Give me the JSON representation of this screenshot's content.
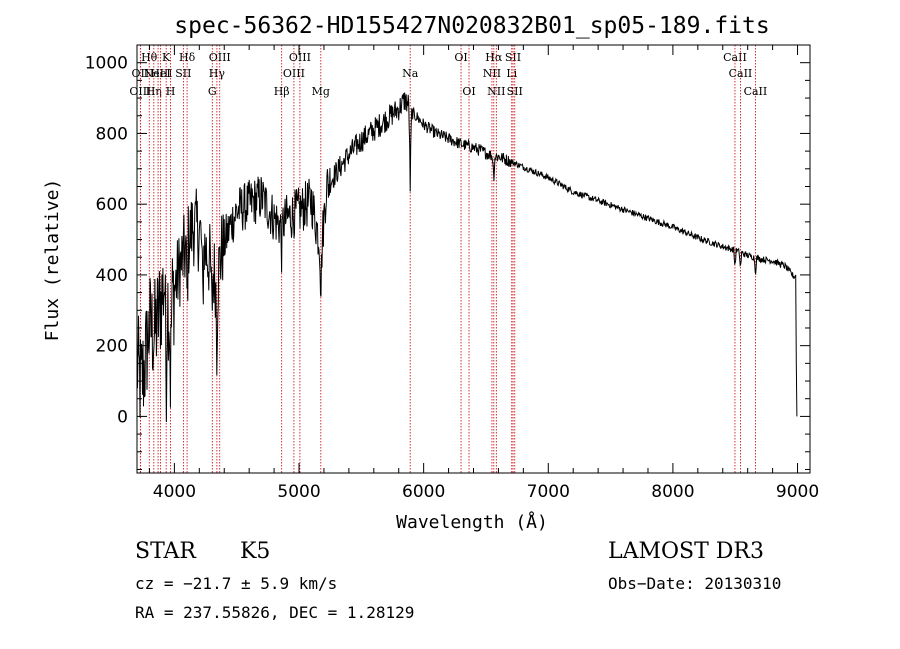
{
  "chart_data": {
    "type": "line",
    "title": "spec-56362-HD155427N020832B01_sp05-189.fits",
    "xlabel": "Wavelength (Å)",
    "ylabel": "Flux (relative)",
    "xlim": [
      3700,
      9100
    ],
    "ylim": [
      -160,
      1050
    ],
    "x_ticks": [
      4000,
      5000,
      6000,
      7000,
      8000,
      9000
    ],
    "y_ticks": [
      0,
      200,
      400,
      600,
      800,
      1000
    ],
    "grid": false,
    "series": [
      {
        "name": "flux",
        "anchors": [
          [
            3700,
            150
          ],
          [
            3730,
            90
          ],
          [
            3760,
            140
          ],
          [
            3800,
            260
          ],
          [
            3840,
            230
          ],
          [
            3880,
            300
          ],
          [
            3920,
            380
          ],
          [
            3960,
            300
          ],
          [
            4000,
            360
          ],
          [
            4050,
            430
          ],
          [
            4100,
            480
          ],
          [
            4150,
            540
          ],
          [
            4200,
            520
          ],
          [
            4250,
            470
          ],
          [
            4300,
            420
          ],
          [
            4340,
            380
          ],
          [
            4380,
            470
          ],
          [
            4450,
            540
          ],
          [
            4500,
            580
          ],
          [
            4600,
            600
          ],
          [
            4700,
            620
          ],
          [
            4800,
            560
          ],
          [
            4850,
            540
          ],
          [
            4900,
            560
          ],
          [
            5000,
            580
          ],
          [
            5100,
            610
          ],
          [
            5150,
            520
          ],
          [
            5180,
            470
          ],
          [
            5220,
            650
          ],
          [
            5300,
            690
          ],
          [
            5400,
            740
          ],
          [
            5500,
            780
          ],
          [
            5600,
            810
          ],
          [
            5700,
            840
          ],
          [
            5800,
            870
          ],
          [
            5850,
            895
          ],
          [
            5880,
            880
          ],
          [
            5900,
            860
          ],
          [
            5950,
            845
          ],
          [
            6000,
            825
          ],
          [
            6100,
            800
          ],
          [
            6200,
            785
          ],
          [
            6300,
            770
          ],
          [
            6400,
            760
          ],
          [
            6500,
            745
          ],
          [
            6560,
            735
          ],
          [
            6600,
            735
          ],
          [
            6700,
            720
          ],
          [
            6800,
            705
          ],
          [
            7000,
            675
          ],
          [
            7200,
            635
          ],
          [
            7400,
            610
          ],
          [
            7600,
            585
          ],
          [
            7800,
            560
          ],
          [
            8000,
            535
          ],
          [
            8200,
            505
          ],
          [
            8400,
            480
          ],
          [
            8500,
            470
          ],
          [
            8600,
            455
          ],
          [
            8700,
            445
          ],
          [
            8800,
            440
          ],
          [
            8900,
            425
          ],
          [
            8970,
            395
          ]
        ],
        "absorption": [
          {
            "x": 3934,
            "depth": 0.75
          },
          {
            "x": 3969,
            "depth": 0.7
          },
          {
            "x": 4102,
            "depth": 0.35
          },
          {
            "x": 4227,
            "depth": 0.35
          },
          {
            "x": 4300,
            "depth": 0.3
          },
          {
            "x": 4340,
            "depth": 0.45
          },
          {
            "x": 4861,
            "depth": 0.15
          },
          {
            "x": 5175,
            "depth": 0.25
          },
          {
            "x": 5892,
            "depth": 0.25
          },
          {
            "x": 6563,
            "depth": 0.08
          },
          {
            "x": 8498,
            "depth": 0.1
          },
          {
            "x": 8542,
            "depth": 0.1
          },
          {
            "x": 8662,
            "depth": 0.1
          }
        ],
        "tail_drop": [
          [
            8985,
            400
          ],
          [
            8990,
            150
          ],
          [
            8995,
            0
          ]
        ]
      }
    ],
    "line_markers": [
      {
        "x": 3727,
        "label": "OII",
        "row": 1
      },
      {
        "x": 3727,
        "label": "OIII",
        "row": 2
      },
      {
        "x": 3798,
        "label": "Hθ",
        "row": 0
      },
      {
        "x": 3835,
        "label": "Hη",
        "row": 2
      },
      {
        "x": 3869,
        "label": "NeIII",
        "row": 1
      },
      {
        "x": 3889,
        "label": "HeI",
        "row": 1
      },
      {
        "x": 3934,
        "label": "K",
        "row": 0
      },
      {
        "x": 3969,
        "label": "H",
        "row": 2
      },
      {
        "x": 4072,
        "label": "SII",
        "row": 1
      },
      {
        "x": 4102,
        "label": "Hδ",
        "row": 0
      },
      {
        "x": 4304,
        "label": "G",
        "row": 2
      },
      {
        "x": 4341,
        "label": "Hγ",
        "row": 1
      },
      {
        "x": 4364,
        "label": "OIII",
        "row": 0
      },
      {
        "x": 4861,
        "label": "Hβ",
        "row": 2
      },
      {
        "x": 4959,
        "label": "OIII",
        "row": 1
      },
      {
        "x": 5007,
        "label": "OIII",
        "row": 0
      },
      {
        "x": 5175,
        "label": "Mg",
        "row": 2
      },
      {
        "x": 5892,
        "label": "Na",
        "row": 1
      },
      {
        "x": 6300,
        "label": "OI",
        "row": 0
      },
      {
        "x": 6364,
        "label": "OI",
        "row": 2
      },
      {
        "x": 6548,
        "label": "NII",
        "row": 1
      },
      {
        "x": 6563,
        "label": "Hα",
        "row": 0
      },
      {
        "x": 6583,
        "label": "NII",
        "row": 2
      },
      {
        "x": 6707,
        "label": "Li",
        "row": 1
      },
      {
        "x": 6717,
        "label": "SII",
        "row": 0
      },
      {
        "x": 6731,
        "label": "SII",
        "row": 2
      },
      {
        "x": 8498,
        "label": "CaII",
        "row": 0
      },
      {
        "x": 8542,
        "label": "CaII",
        "row": 1
      },
      {
        "x": 8662,
        "label": "CaII",
        "row": 2
      }
    ],
    "marker_color": "#cc0000"
  },
  "info": {
    "object_class": "STAR",
    "subclass": "K5",
    "survey": "LAMOST DR3",
    "cz": "cz = −21.7 ± 5.9 km/s",
    "obs_date": "Obs−Date: 20130310",
    "coords": "RA = 237.55826, DEC =    1.28129"
  }
}
